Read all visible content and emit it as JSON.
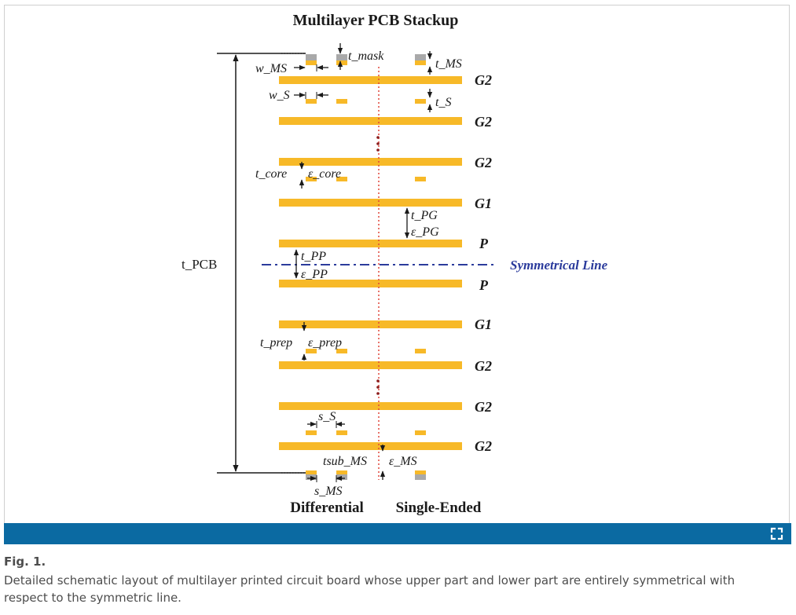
{
  "figure": {
    "title": "Multilayer PCB Stackup",
    "labels": {
      "t_mask": "t_mask",
      "w_MS": "w_MS",
      "t_MS": "t_MS",
      "w_S": "w_S",
      "t_S": "t_S",
      "t_core": "t_core",
      "eps_core": "ε_core",
      "t_PG": "t_PG",
      "eps_PG": "ε_PG",
      "t_PP": "t_PP",
      "eps_PP": "ε_PP",
      "t_prep": "t_prep",
      "eps_prep": "ε_prep",
      "s_S": "s_S",
      "tsub_MS": "tsub_MS",
      "eps_MS": "ε_MS",
      "s_MS": "s_MS",
      "t_PCB": "t_PCB",
      "symmetrical_line": "Symmetrical Line",
      "differential": "Differential",
      "single_ended": "Single-Ended"
    },
    "layers": [
      "G2",
      "G2",
      "G2",
      "G1",
      "P",
      "P",
      "G1",
      "G2",
      "G2",
      "G2"
    ],
    "colors": {
      "copper": "#f7b928",
      "mask": "#a9a9a9",
      "symmetry_line": "#2b3b9c",
      "center_line": "#e0463a",
      "text": "#1a1a1a"
    }
  },
  "toolbar": {
    "expand_icon": "expand-icon"
  },
  "caption": {
    "label": "Fig. 1.",
    "text": "Detailed schematic layout of multilayer printed circuit board whose upper part and lower part are entirely symmetrical with respect to the symmetric line."
  }
}
